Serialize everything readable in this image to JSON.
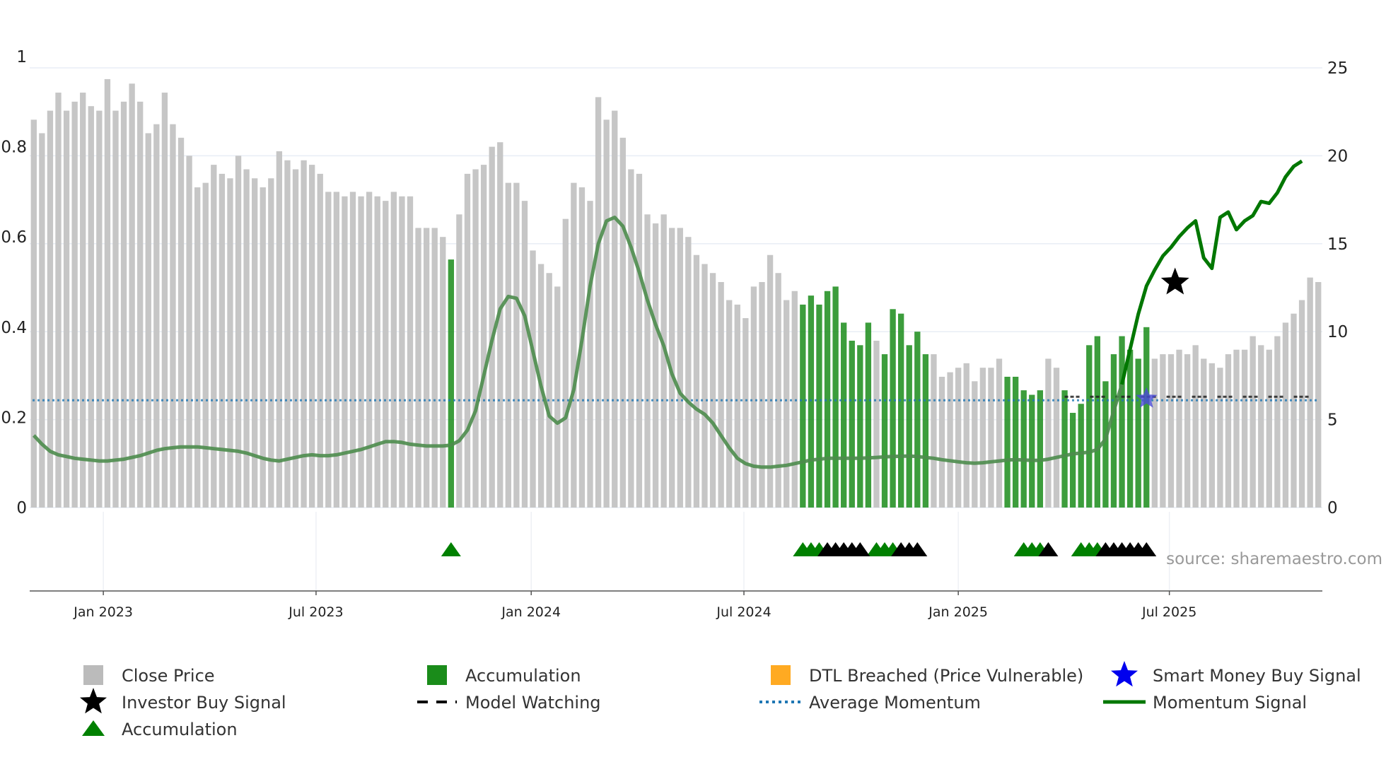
{
  "chart_data": {
    "type": "bar",
    "title": "",
    "source": "source: sharemaestro.com",
    "left_axis": {
      "range": [
        0,
        1
      ],
      "ticks": [
        0,
        0.2,
        0.4,
        0.6,
        0.8,
        1
      ],
      "tick_labels": [
        "0",
        "0.2",
        "0.4",
        "0.6",
        "0.8",
        "1"
      ]
    },
    "right_axis": {
      "range": [
        0,
        25
      ],
      "ticks": [
        0,
        5,
        10,
        15,
        20,
        25
      ],
      "tick_labels": [
        "0",
        "5",
        "10",
        "15",
        "20",
        "25"
      ]
    },
    "x_ticks": [
      {
        "label": "Jan 2023",
        "index": 8.5
      },
      {
        "label": "Jul 2023",
        "index": 34.5
      },
      {
        "label": "Jan 2024",
        "index": 60.8
      },
      {
        "label": "Jul 2024",
        "index": 86.8
      },
      {
        "label": "Jan 2025",
        "index": 113.0
      },
      {
        "label": "Jul 2025",
        "index": 138.8
      }
    ],
    "close_price": [
      0.86,
      0.83,
      0.88,
      0.92,
      0.88,
      0.9,
      0.92,
      0.89,
      0.88,
      0.95,
      0.88,
      0.9,
      0.94,
      0.9,
      0.83,
      0.85,
      0.92,
      0.85,
      0.82,
      0.78,
      0.71,
      0.72,
      0.76,
      0.74,
      0.73,
      0.78,
      0.75,
      0.73,
      0.71,
      0.73,
      0.79,
      0.77,
      0.75,
      0.77,
      0.76,
      0.74,
      0.7,
      0.7,
      0.69,
      0.7,
      0.69,
      0.7,
      0.69,
      0.68,
      0.7,
      0.69,
      0.69,
      0.62,
      0.62,
      0.62,
      0.6,
      0.55,
      0.65,
      0.74,
      0.75,
      0.76,
      0.8,
      0.81,
      0.72,
      0.72,
      0.68,
      0.57,
      0.54,
      0.52,
      0.49,
      0.64,
      0.72,
      0.71,
      0.68,
      0.91,
      0.86,
      0.88,
      0.82,
      0.75,
      0.74,
      0.65,
      0.63,
      0.65,
      0.62,
      0.62,
      0.6,
      0.56,
      0.54,
      0.52,
      0.5,
      0.46,
      0.45,
      0.42,
      0.49,
      0.5,
      0.56,
      0.52,
      0.46,
      0.48,
      0.45,
      0.47,
      0.45,
      0.48,
      0.49,
      0.41,
      0.37,
      0.36,
      0.41,
      0.37,
      0.34,
      0.44,
      0.43,
      0.36,
      0.39,
      0.34,
      0.34,
      0.29,
      0.3,
      0.31,
      0.32,
      0.28,
      0.31,
      0.31,
      0.33,
      0.29,
      0.29,
      0.26,
      0.25,
      0.26,
      0.33,
      0.31,
      0.26,
      0.21,
      0.23,
      0.36,
      0.38,
      0.28,
      0.34,
      0.38,
      0.35,
      0.33,
      0.4,
      0.33,
      0.34,
      0.34,
      0.35,
      0.34,
      0.36,
      0.33,
      0.32,
      0.31,
      0.34,
      0.35,
      0.35,
      0.38,
      0.36,
      0.35,
      0.38,
      0.41,
      0.43,
      0.46,
      0.51,
      0.5
    ],
    "accumulation_bar_indices": [
      51,
      94,
      95,
      96,
      97,
      98,
      99,
      100,
      101,
      102,
      104,
      105,
      106,
      107,
      108,
      109,
      119,
      120,
      121,
      122,
      123,
      126,
      127,
      128,
      129,
      130,
      131,
      132,
      133,
      134,
      135,
      136
    ],
    "momentum_signal": [
      4.1,
      3.6,
      3.2,
      3.0,
      2.9,
      2.8,
      2.75,
      2.7,
      2.65,
      2.65,
      2.7,
      2.75,
      2.85,
      2.95,
      3.1,
      3.25,
      3.35,
      3.4,
      3.45,
      3.45,
      3.45,
      3.4,
      3.35,
      3.3,
      3.25,
      3.2,
      3.1,
      2.95,
      2.8,
      2.7,
      2.65,
      2.75,
      2.85,
      2.95,
      3.0,
      2.95,
      2.95,
      3.0,
      3.1,
      3.2,
      3.3,
      3.45,
      3.6,
      3.75,
      3.75,
      3.7,
      3.6,
      3.55,
      3.5,
      3.5,
      3.5,
      3.55,
      3.8,
      4.4,
      5.5,
      7.5,
      9.5,
      11.3,
      12.0,
      11.9,
      10.9,
      8.9,
      6.9,
      5.2,
      4.8,
      5.1,
      6.7,
      9.5,
      12.6,
      15.0,
      16.3,
      16.5,
      16.0,
      14.8,
      13.4,
      11.8,
      10.4,
      9.2,
      7.6,
      6.5,
      6.0,
      5.6,
      5.3,
      4.8,
      4.1,
      3.4,
      2.8,
      2.5,
      2.35,
      2.3,
      2.3,
      2.35,
      2.4,
      2.5,
      2.6,
      2.7,
      2.75,
      2.8,
      2.8,
      2.8,
      2.8,
      2.8,
      2.82,
      2.85,
      2.88,
      2.9,
      2.92,
      2.93,
      2.9,
      2.85,
      2.8,
      2.72,
      2.66,
      2.6,
      2.55,
      2.52,
      2.55,
      2.6,
      2.65,
      2.7,
      2.72,
      2.7,
      2.68,
      2.68,
      2.75,
      2.85,
      2.95,
      3.05,
      3.1,
      3.15,
      3.3,
      3.9,
      5.5,
      7.0,
      9.0,
      11.0,
      12.6,
      13.5,
      14.3,
      14.8,
      15.4,
      15.9,
      16.3,
      14.2,
      13.6,
      16.5,
      16.8,
      15.8,
      16.3,
      16.6,
      17.4,
      17.3,
      17.9,
      18.8,
      19.4,
      19.7
    ],
    "average_momentum": 6.1,
    "accumulation_markers": [
      51,
      94,
      95,
      96,
      103,
      104,
      105,
      121,
      122,
      123,
      128,
      129,
      130
    ],
    "investor_markers": [
      97,
      98,
      99,
      100,
      101,
      106,
      107,
      108,
      124,
      131,
      132,
      133,
      134,
      135,
      136
    ],
    "model_watching_range": [
      126,
      157
    ],
    "smart_money_buy_signal": {
      "index": 136,
      "value": 6.2
    },
    "investor_buy_signal": {
      "index": 139.5,
      "value": 12.8
    },
    "legend": [
      {
        "label": "Close Price",
        "symbol": "square",
        "color": "#bbbbbb"
      },
      {
        "label": "Accumulation",
        "symbol": "square",
        "color": "#1a8c1a"
      },
      {
        "label": "DTL Breached (Price Vulnerable)",
        "symbol": "square",
        "color": "#ffaa22"
      },
      {
        "label": "Smart Money Buy Signal",
        "symbol": "star",
        "color": "#0000ee"
      },
      {
        "label": "Investor Buy Signal",
        "symbol": "star",
        "color": "#000000"
      },
      {
        "label": "Model Watching",
        "symbol": "dash",
        "color": "#000000"
      },
      {
        "label": "Average Momentum",
        "symbol": "dotted",
        "color": "#1f77b4"
      },
      {
        "label": "Momentum Signal",
        "symbol": "line",
        "color": "#007700"
      },
      {
        "label": "Accumulation",
        "symbol": "triangle",
        "color": "#008000"
      }
    ]
  },
  "colors": {
    "close_price": "#c6c6c6",
    "accumulation_bar": "#1a8c1a",
    "momentum": "#007700",
    "average_momentum": "#1f77b4",
    "grid": "#e8eef5"
  }
}
